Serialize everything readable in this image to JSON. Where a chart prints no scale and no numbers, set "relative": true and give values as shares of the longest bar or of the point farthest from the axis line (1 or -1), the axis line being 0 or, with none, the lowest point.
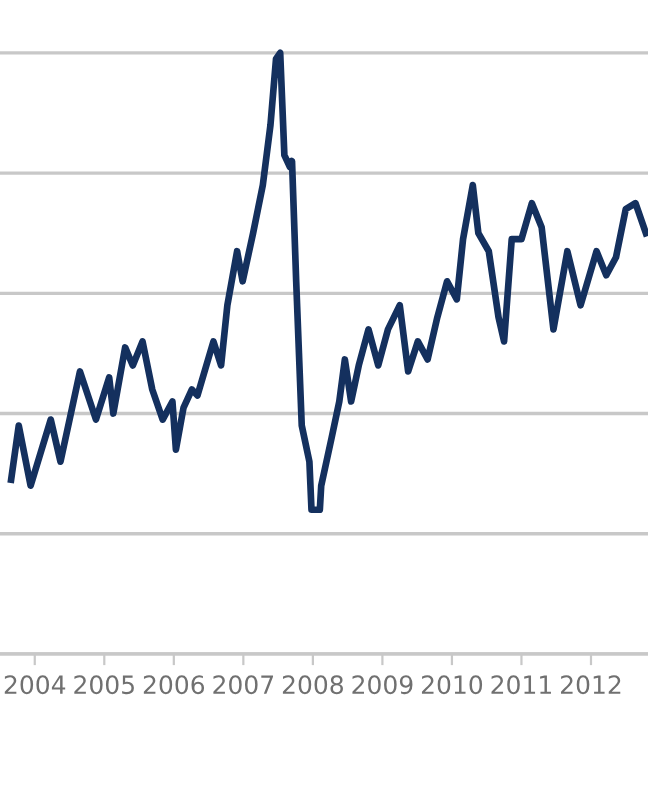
{
  "chart_data": {
    "type": "line",
    "relative": true,
    "grid": "y",
    "marker": "none",
    "line_style": "solid",
    "xlim": [
      2003.5,
      2012.82
    ],
    "xticks": [
      2004,
      2005,
      2006,
      2007,
      2008,
      2009,
      2010,
      2011,
      2012
    ],
    "series": [
      {
        "color": "#14305e",
        "x": [
          2003.66,
          2003.77,
          2003.94,
          2004.23,
          2004.37,
          2004.65,
          2004.88,
          2005.07,
          2005.13,
          2005.3,
          2005.41,
          2005.55,
          2005.69,
          2005.84,
          2005.98,
          2006.03,
          2006.14,
          2006.26,
          2006.34,
          2006.57,
          2006.68,
          2006.77,
          2006.91,
          2006.99,
          2007.14,
          2007.28,
          2007.39,
          2007.47,
          2007.53,
          2007.59,
          2007.67,
          2007.7,
          2007.76,
          2007.84,
          2007.95,
          2007.98,
          2008.1,
          2008.12,
          2008.27,
          2008.38,
          2008.46,
          2008.55,
          2008.66,
          2008.8,
          2008.94,
          2009.08,
          2009.25,
          2009.37,
          2009.51,
          2009.65,
          2009.79,
          2009.93,
          2010.07,
          2010.16,
          2010.3,
          2010.38,
          2010.53,
          2010.67,
          2010.75,
          2010.86,
          2011.0,
          2011.15,
          2011.29,
          2011.46,
          2011.66,
          2011.85,
          2012.08,
          2012.22,
          2012.36,
          2012.5,
          2012.64,
          2012.79
        ],
        "values": [
          0.29,
          0.38,
          0.28,
          0.39,
          0.32,
          0.47,
          0.39,
          0.46,
          0.4,
          0.51,
          0.48,
          0.52,
          0.44,
          0.39,
          0.42,
          0.34,
          0.41,
          0.44,
          0.43,
          0.52,
          0.48,
          0.58,
          0.67,
          0.62,
          0.7,
          0.78,
          0.88,
          0.99,
          1.0,
          0.83,
          0.81,
          0.82,
          0.62,
          0.38,
          0.32,
          0.24,
          0.24,
          0.28,
          0.36,
          0.42,
          0.49,
          0.42,
          0.48,
          0.54,
          0.48,
          0.54,
          0.58,
          0.47,
          0.52,
          0.49,
          0.56,
          0.62,
          0.59,
          0.69,
          0.78,
          0.7,
          0.67,
          0.56,
          0.52,
          0.69,
          0.69,
          0.75,
          0.71,
          0.54,
          0.67,
          0.58,
          0.67,
          0.63,
          0.66,
          0.74,
          0.75,
          0.7
        ]
      }
    ]
  }
}
